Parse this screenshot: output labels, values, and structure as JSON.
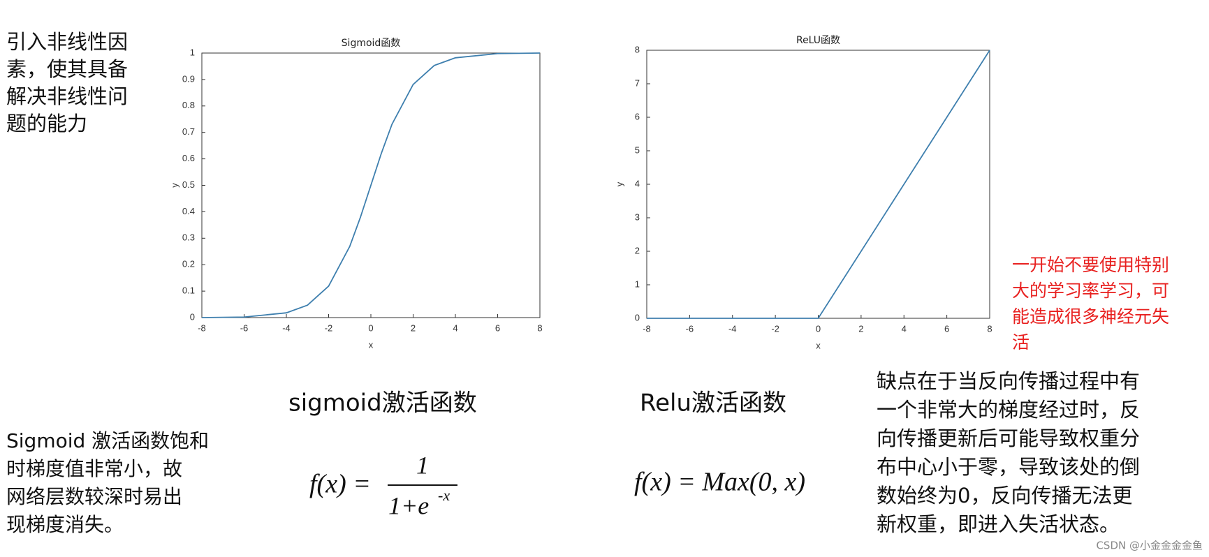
{
  "chart_data": [
    {
      "type": "line",
      "title": "Sigmoid函数",
      "x_label": "x",
      "y_label": "y",
      "series": [
        {
          "name": "sigmoid",
          "color": "#3e7fae",
          "x": [
            -8,
            -6,
            -4,
            -3,
            -2,
            -1,
            -0.5,
            0,
            0.5,
            1,
            2,
            3,
            4,
            6,
            8
          ],
          "values": [
            0,
            0.002,
            0.018,
            0.047,
            0.119,
            0.269,
            0.378,
            0.5,
            0.622,
            0.731,
            0.881,
            0.953,
            0.982,
            0.998,
            1
          ]
        }
      ],
      "xlim": [
        -8,
        8
      ],
      "xticks": [
        -8,
        -6,
        -4,
        -2,
        0,
        2,
        4,
        6,
        8
      ],
      "ylim": [
        0,
        1
      ],
      "yticks": [
        0,
        0.1,
        0.2,
        0.3,
        0.4,
        0.5,
        0.6,
        0.7,
        0.8,
        0.9,
        1
      ]
    },
    {
      "type": "line",
      "title": "ReLU函数",
      "x_label": "x",
      "y_label": "y",
      "series": [
        {
          "name": "relu",
          "color": "#3e7fae",
          "x": [
            -8,
            0,
            8
          ],
          "values": [
            0,
            0,
            8
          ]
        }
      ],
      "xlim": [
        -8,
        8
      ],
      "xticks": [
        -8,
        -6,
        -4,
        -2,
        0,
        2,
        4,
        6,
        8
      ],
      "ylim": [
        0,
        8
      ],
      "yticks": [
        0,
        1,
        2,
        3,
        4,
        5,
        6,
        7,
        8
      ]
    }
  ],
  "texts": {
    "intro": [
      "引入非线性因",
      "素，使其具备",
      "解决非线性问",
      "题的能力"
    ],
    "sigmoid_caption": "sigmoid激活函数",
    "relu_caption": "Relu激活函数",
    "sigmoid_note": [
      "Sigmoid 激活函数饱和",
      "时梯度值非常小，故",
      "网络层数较深时易出",
      "现梯度消失。"
    ],
    "sigmoid_formula": {
      "lhs": "f(x) =",
      "numerator": "1",
      "denominator": "1+e",
      "exponent": "-x"
    },
    "relu_formula": "f(x) = Max(0, x)",
    "relu_note": [
      "缺点在于当反向传播过程中有",
      "一个非常大的梯度经过时，反",
      "向传播更新后可能导致权重分",
      "布中心小于零，导致该处的倒",
      "数始终为0，反向传播无法更",
      "新权重，即进入失活状态。"
    ],
    "warning": [
      "一开始不要使用特别",
      "大的学习率学习，可",
      "能造成很多神经元失",
      "活"
    ],
    "watermark": "CSDN @小金金金金鱼"
  }
}
